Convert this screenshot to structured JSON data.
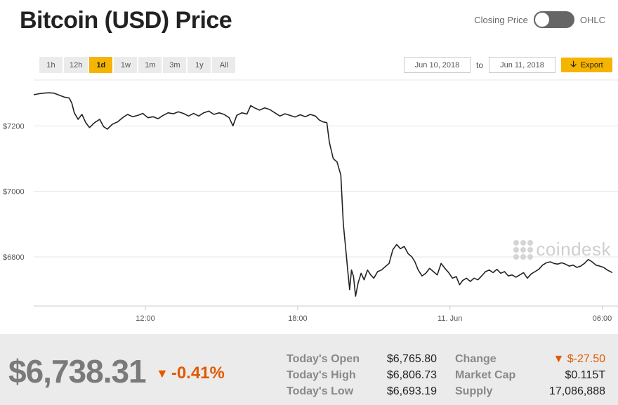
{
  "header": {
    "title": "Bitcoin (USD) Price",
    "toggle_left_label": "Closing Price",
    "toggle_right_label": "OHLC"
  },
  "ranges": [
    "1h",
    "12h",
    "1d",
    "1w",
    "1m",
    "3m",
    "1y",
    "All"
  ],
  "active_range": "1d",
  "date_range": {
    "from": "Jun 10, 2018",
    "separator": "to",
    "to": "Jun 11, 2018",
    "export_label": "Export",
    "export_icon": "download-arrow-icon"
  },
  "watermark": "coindesk",
  "colors": {
    "accent": "#f5b400",
    "negative": "#e05a00",
    "line": "#222222"
  },
  "chart_data": {
    "type": "line",
    "y_ticks": [
      {
        "value": 7200,
        "label": "$7200"
      },
      {
        "value": 7000,
        "label": "$7000"
      },
      {
        "value": 6800,
        "label": "$6800"
      }
    ],
    "x_ticks": [
      {
        "x": 12,
        "label": "12:00"
      },
      {
        "x": 18,
        "label": "18:00"
      },
      {
        "x": 24,
        "label": "11. Jun"
      },
      {
        "x": 30,
        "label": "06:00"
      }
    ],
    "xlim": [
      7.6,
      30.4
    ],
    "ylim": [
      6650,
      7340
    ],
    "grid": true,
    "legend": "none",
    "points": [
      [
        7.6,
        7295
      ],
      [
        7.8,
        7298
      ],
      [
        8.0,
        7300
      ],
      [
        8.2,
        7301
      ],
      [
        8.4,
        7300
      ],
      [
        8.6,
        7294
      ],
      [
        8.8,
        7288
      ],
      [
        9.0,
        7285
      ],
      [
        9.1,
        7270
      ],
      [
        9.2,
        7240
      ],
      [
        9.35,
        7220
      ],
      [
        9.5,
        7235
      ],
      [
        9.65,
        7210
      ],
      [
        9.8,
        7195
      ],
      [
        10.0,
        7210
      ],
      [
        10.2,
        7220
      ],
      [
        10.35,
        7198
      ],
      [
        10.5,
        7190
      ],
      [
        10.7,
        7205
      ],
      [
        10.9,
        7212
      ],
      [
        11.1,
        7225
      ],
      [
        11.3,
        7235
      ],
      [
        11.5,
        7228
      ],
      [
        11.7,
        7232
      ],
      [
        11.9,
        7238
      ],
      [
        12.1,
        7225
      ],
      [
        12.3,
        7228
      ],
      [
        12.5,
        7222
      ],
      [
        12.7,
        7232
      ],
      [
        12.9,
        7240
      ],
      [
        13.1,
        7237
      ],
      [
        13.3,
        7243
      ],
      [
        13.5,
        7238
      ],
      [
        13.7,
        7230
      ],
      [
        13.9,
        7238
      ],
      [
        14.1,
        7230
      ],
      [
        14.3,
        7240
      ],
      [
        14.5,
        7245
      ],
      [
        14.7,
        7235
      ],
      [
        14.9,
        7240
      ],
      [
        15.1,
        7235
      ],
      [
        15.3,
        7225
      ],
      [
        15.45,
        7200
      ],
      [
        15.6,
        7232
      ],
      [
        15.8,
        7240
      ],
      [
        16.0,
        7236
      ],
      [
        16.15,
        7262
      ],
      [
        16.3,
        7255
      ],
      [
        16.5,
        7248
      ],
      [
        16.7,
        7255
      ],
      [
        16.9,
        7250
      ],
      [
        17.1,
        7240
      ],
      [
        17.3,
        7230
      ],
      [
        17.5,
        7237
      ],
      [
        17.7,
        7232
      ],
      [
        17.9,
        7227
      ],
      [
        18.1,
        7234
      ],
      [
        18.3,
        7228
      ],
      [
        18.5,
        7235
      ],
      [
        18.7,
        7230
      ],
      [
        18.85,
        7218
      ],
      [
        19.0,
        7212
      ],
      [
        19.15,
        7210
      ],
      [
        19.25,
        7150
      ],
      [
        19.4,
        7100
      ],
      [
        19.55,
        7090
      ],
      [
        19.7,
        7050
      ],
      [
        19.8,
        6900
      ],
      [
        19.9,
        6820
      ],
      [
        19.97,
        6760
      ],
      [
        20.05,
        6700
      ],
      [
        20.12,
        6760
      ],
      [
        20.2,
        6740
      ],
      [
        20.28,
        6680
      ],
      [
        20.38,
        6720
      ],
      [
        20.5,
        6750
      ],
      [
        20.62,
        6730
      ],
      [
        20.75,
        6760
      ],
      [
        20.88,
        6745
      ],
      [
        21.0,
        6735
      ],
      [
        21.15,
        6755
      ],
      [
        21.3,
        6760
      ],
      [
        21.45,
        6770
      ],
      [
        21.6,
        6780
      ],
      [
        21.75,
        6822
      ],
      [
        21.9,
        6838
      ],
      [
        22.05,
        6825
      ],
      [
        22.2,
        6832
      ],
      [
        22.35,
        6810
      ],
      [
        22.5,
        6800
      ],
      [
        22.62,
        6785
      ],
      [
        22.75,
        6760
      ],
      [
        22.9,
        6742
      ],
      [
        23.05,
        6750
      ],
      [
        23.2,
        6765
      ],
      [
        23.35,
        6755
      ],
      [
        23.5,
        6745
      ],
      [
        23.65,
        6780
      ],
      [
        23.8,
        6765
      ],
      [
        23.95,
        6752
      ],
      [
        24.1,
        6735
      ],
      [
        24.25,
        6740
      ],
      [
        24.38,
        6715
      ],
      [
        24.5,
        6728
      ],
      [
        24.65,
        6735
      ],
      [
        24.8,
        6725
      ],
      [
        24.95,
        6735
      ],
      [
        25.1,
        6730
      ],
      [
        25.25,
        6742
      ],
      [
        25.4,
        6755
      ],
      [
        25.55,
        6760
      ],
      [
        25.7,
        6752
      ],
      [
        25.85,
        6762
      ],
      [
        26.0,
        6750
      ],
      [
        26.15,
        6755
      ],
      [
        26.3,
        6742
      ],
      [
        26.45,
        6745
      ],
      [
        26.6,
        6738
      ],
      [
        26.75,
        6745
      ],
      [
        26.9,
        6752
      ],
      [
        27.05,
        6735
      ],
      [
        27.2,
        6748
      ],
      [
        27.35,
        6755
      ],
      [
        27.5,
        6762
      ],
      [
        27.65,
        6775
      ],
      [
        27.8,
        6782
      ],
      [
        27.95,
        6785
      ],
      [
        28.1,
        6780
      ],
      [
        28.25,
        6778
      ],
      [
        28.4,
        6782
      ],
      [
        28.55,
        6778
      ],
      [
        28.7,
        6772
      ],
      [
        28.85,
        6775
      ],
      [
        29.0,
        6768
      ],
      [
        29.15,
        6772
      ],
      [
        29.3,
        6780
      ],
      [
        29.45,
        6792
      ],
      [
        29.6,
        6785
      ],
      [
        29.75,
        6775
      ],
      [
        29.9,
        6772
      ],
      [
        30.05,
        6768
      ],
      [
        30.2,
        6760
      ],
      [
        30.4,
        6752
      ]
    ]
  },
  "stats": {
    "price": "$6,738.31",
    "change_pct": "-0.41%",
    "open_label": "Today's Open",
    "open_value": "$6,765.80",
    "high_label": "Today's High",
    "high_value": "$6,806.73",
    "low_label": "Today's Low",
    "low_value": "$6,693.19",
    "change_label": "Change",
    "change_value": "$-27.50",
    "mcap_label": "Market Cap",
    "mcap_value": "$0.115T",
    "supply_label": "Supply",
    "supply_value": "17,086,888"
  }
}
